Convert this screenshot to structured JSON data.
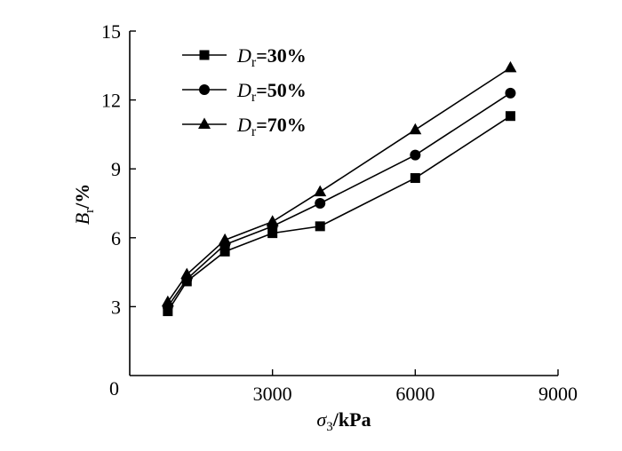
{
  "chart_data": {
    "type": "line",
    "title": "",
    "xlabel": {
      "symbol": "σ",
      "sub": "3",
      "unit": "/kPa"
    },
    "ylabel": {
      "symbol": "B",
      "sub": "r",
      "unit": "/%"
    },
    "xlim": [
      0,
      9000
    ],
    "ylim": [
      0,
      15
    ],
    "xticks": [
      0,
      3000,
      6000,
      9000
    ],
    "yticks": [
      3,
      6,
      9,
      12,
      15
    ],
    "origin_label": "0",
    "grid": false,
    "legend_position": "top-left",
    "series": [
      {
        "name": "Dr=30%",
        "legend": {
          "symbol": "D",
          "sub": "r",
          "value": "=30%"
        },
        "marker": "square",
        "x": [
          800,
          1200,
          2000,
          3000,
          4000,
          6000,
          8000
        ],
        "y": [
          2.8,
          4.1,
          5.4,
          6.2,
          6.5,
          8.6,
          11.3
        ]
      },
      {
        "name": "Dr=50%",
        "legend": {
          "symbol": "D",
          "sub": "r",
          "value": "=50%"
        },
        "marker": "circle",
        "x": [
          800,
          1200,
          2000,
          3000,
          4000,
          6000,
          8000
        ],
        "y": [
          3.0,
          4.2,
          5.7,
          6.5,
          7.5,
          9.6,
          12.3
        ]
      },
      {
        "name": "Dr=70%",
        "legend": {
          "symbol": "D",
          "sub": "r",
          "value": "=70%"
        },
        "marker": "triangle",
        "x": [
          800,
          1200,
          2000,
          3000,
          4000,
          6000,
          8000
        ],
        "y": [
          3.2,
          4.4,
          5.9,
          6.7,
          8.0,
          10.7,
          13.4
        ]
      }
    ]
  }
}
